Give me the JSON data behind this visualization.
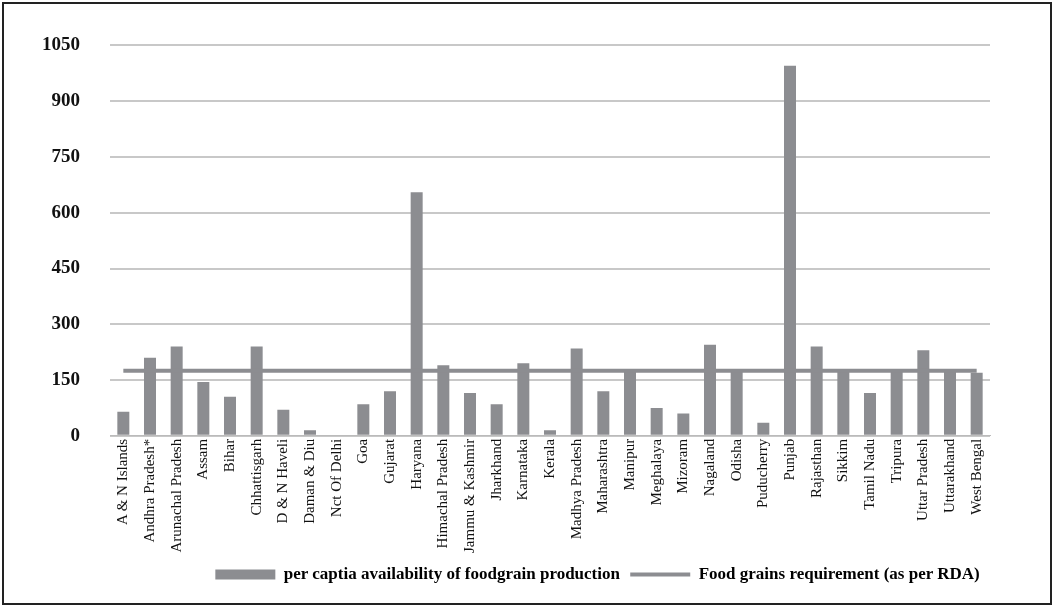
{
  "chart_data": {
    "type": "bar",
    "categories": [
      "A & N Islands",
      "Andhra Pradesh*",
      "Arunachal Pradesh",
      "Assam",
      "Bihar",
      "Chhattisgarh",
      "D & N Haveli",
      "Daman & Diu",
      "Nct Of Delhi",
      "Goa",
      "Gujarat",
      "Haryana",
      "Himachal Pradesh",
      "Jammu & Kashmir",
      "Jharkhand",
      "Karnataka",
      "Kerala",
      "Madhya Pradesh",
      "Maharashtra",
      "Manipur",
      "Meghalaya",
      "Mizoram",
      "Nagaland",
      "Odisha",
      "Puducherry",
      "Punjab",
      "Rajasthan",
      "Sikkim",
      "Tamil Nadu",
      "Tripura",
      "Uttar Pradesh",
      "Uttarakhand",
      "West Bengal"
    ],
    "series": [
      {
        "name": "per captia availability of foodgrain production",
        "color": "#8c8d91",
        "values": [
          65,
          210,
          240,
          145,
          105,
          240,
          70,
          15,
          0,
          85,
          120,
          655,
          190,
          115,
          85,
          195,
          15,
          235,
          120,
          175,
          75,
          60,
          245,
          175,
          35,
          995,
          240,
          175,
          115,
          175,
          230,
          175,
          170
        ]
      },
      {
        "name": "Food grains requirement (as per RDA)",
        "type": "line",
        "color": "#8c8d91",
        "values": [
          175,
          175,
          175,
          175,
          175,
          175,
          175,
          175,
          175,
          175,
          175,
          175,
          175,
          175,
          175,
          175,
          175,
          175,
          175,
          175,
          175,
          175,
          175,
          175,
          175,
          175,
          175,
          175,
          175,
          175,
          175,
          175,
          175
        ]
      }
    ],
    "ylim": [
      0,
      1050
    ],
    "yticks": [
      0,
      150,
      300,
      450,
      600,
      750,
      900,
      1050
    ],
    "grid": "y",
    "legend": "bottom",
    "marker": "none"
  }
}
